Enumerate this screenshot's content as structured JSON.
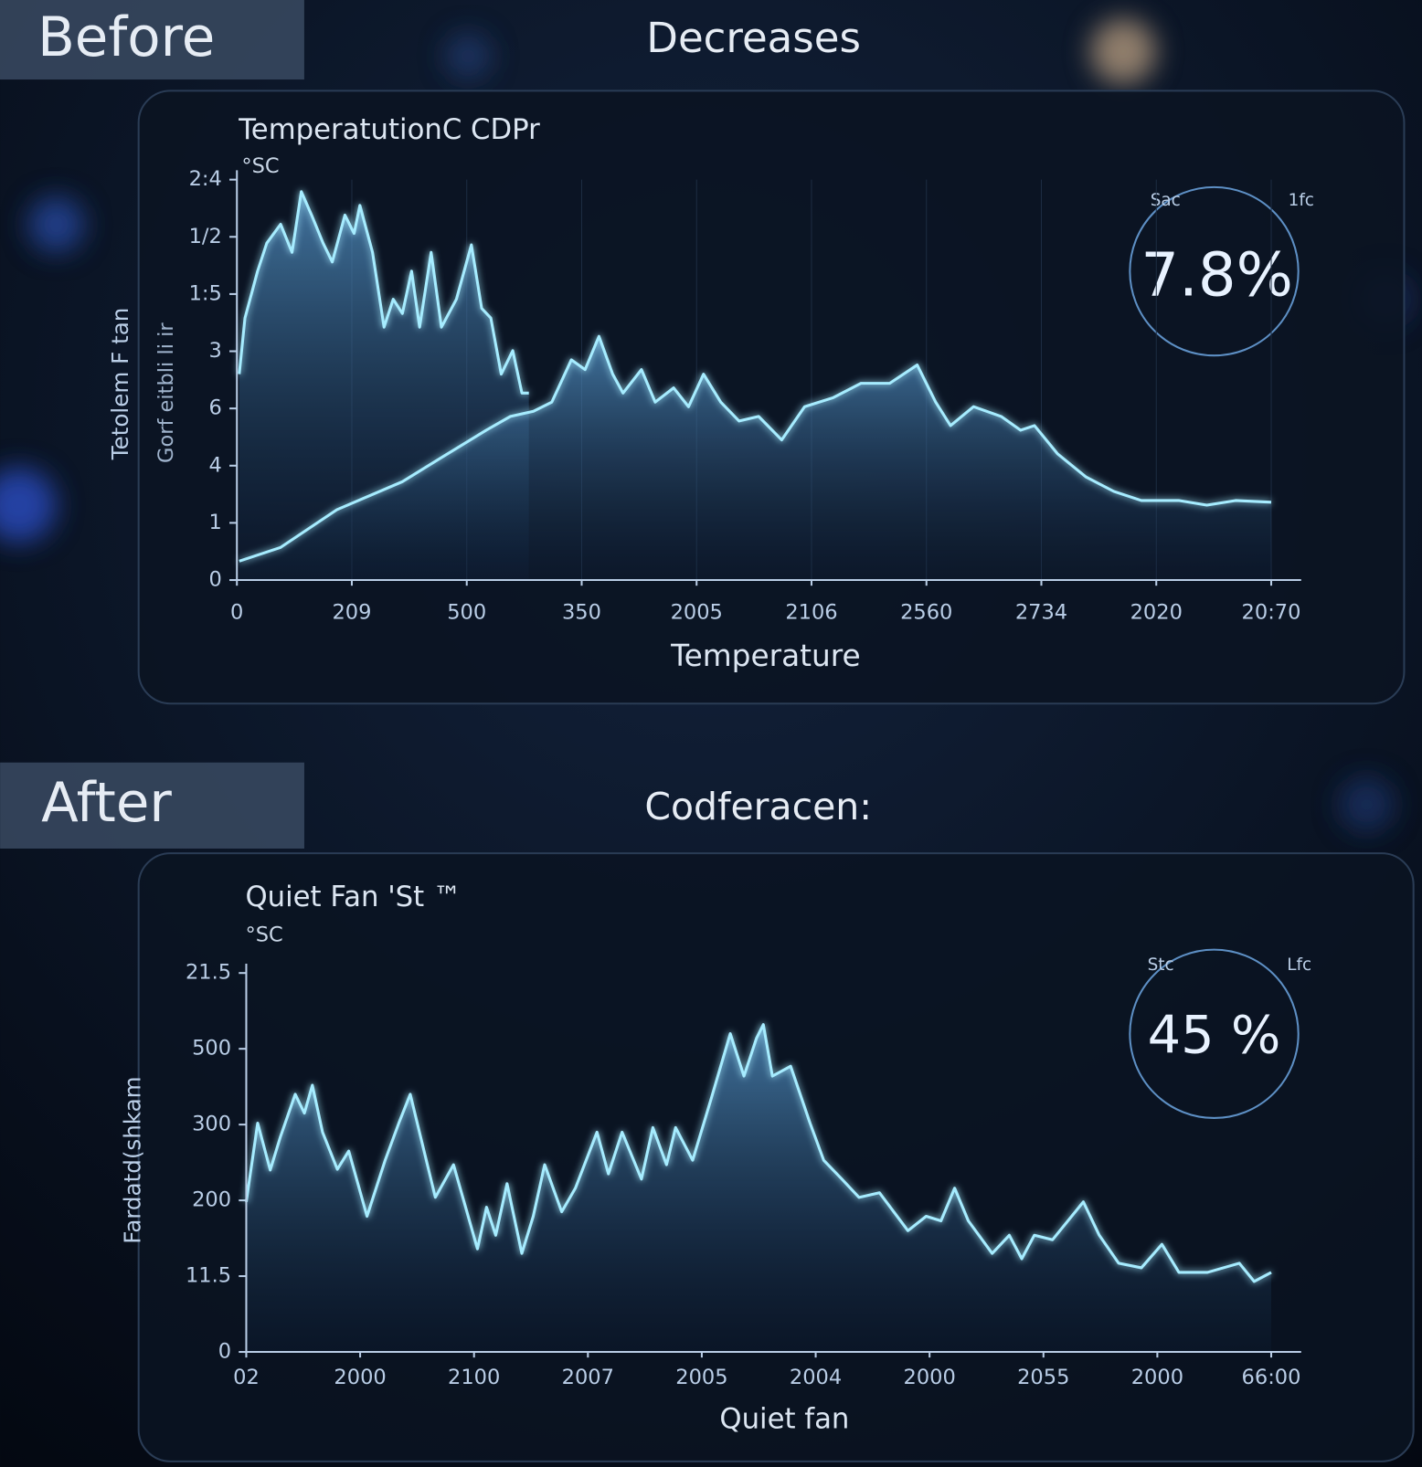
{
  "panels": [
    {
      "tag": "Before",
      "heading": "Decreases",
      "chart": {
        "type": "area",
        "title": "TemperatutionC CDPr",
        "unit": "°SC",
        "ylabel": "Tetolem F tan",
        "ylabel2": "Gorf eitbli li ir",
        "xlabel": "Temperature",
        "grid": true,
        "xlim": [
          0,
          9
        ],
        "ylim": [
          0,
          7
        ],
        "xticks": [
          0,
          {
            "value": 1,
            "label": "209"
          },
          {
            "value": 2,
            "label": "500"
          },
          {
            "value": 3,
            "label": "350"
          },
          {
            "value": 4,
            "label": "2005"
          },
          {
            "value": 5,
            "label": "2106"
          },
          {
            "value": 6,
            "label": "2560"
          },
          {
            "value": 7,
            "label": "2734"
          },
          {
            "value": 8,
            "label": "2020"
          },
          {
            "value": 9,
            "label": "20:70"
          }
        ],
        "yticks": [
          0,
          {
            "value": 1,
            "label": "1"
          },
          {
            "value": 2,
            "label": "4"
          },
          {
            "value": 3,
            "label": "6"
          },
          {
            "value": 4,
            "label": "3"
          },
          {
            "value": 5,
            "label": "1:5"
          },
          {
            "value": 6,
            "label": "1/2"
          },
          {
            "value": 7,
            "label": "2:4"
          }
        ],
        "series": [
          {
            "color": "#a6ecff",
            "x": [
              0.02,
              0.07,
              0.18,
              0.26,
              0.38,
              0.48,
              0.56,
              0.65,
              0.75,
              0.83,
              0.94,
              1.02,
              1.07,
              1.18,
              1.28,
              1.36,
              1.44,
              1.52,
              1.59,
              1.69,
              1.78,
              1.91,
              2.04,
              2.13,
              2.21,
              2.3,
              2.4,
              2.48,
              2.54
            ],
            "values": [
              3.6,
              4.58,
              5.4,
              5.89,
              6.22,
              5.73,
              6.79,
              6.38,
              5.89,
              5.56,
              6.38,
              6.06,
              6.55,
              5.73,
              4.42,
              4.91,
              4.66,
              5.4,
              4.42,
              5.73,
              4.42,
              4.91,
              5.86,
              4.75,
              4.58,
              3.6,
              4.01,
              3.27,
              3.27
            ]
          },
          {
            "color": "#a6ecff",
            "x": [
              0.02,
              0.38,
              0.87,
              1.44,
              1.77,
              2.17,
              2.38,
              2.58,
              2.74,
              2.91,
              3.03,
              3.15,
              3.27,
              3.36,
              3.52,
              3.64,
              3.8,
              3.93,
              4.06,
              4.21,
              4.37,
              4.54,
              4.74,
              4.94,
              5.19,
              5.43,
              5.68,
              5.92,
              6.08,
              6.21,
              6.41,
              6.65,
              6.82,
              6.94,
              7.14,
              7.39,
              7.63,
              7.87,
              8.2,
              8.44,
              8.69,
              9.0
            ],
            "values": [
              0.33,
              0.57,
              1.23,
              1.72,
              2.13,
              2.62,
              2.86,
              2.95,
              3.11,
              3.85,
              3.68,
              4.26,
              3.6,
              3.27,
              3.68,
              3.11,
              3.36,
              3.03,
              3.6,
              3.11,
              2.78,
              2.86,
              2.45,
              3.03,
              3.19,
              3.44,
              3.44,
              3.76,
              3.11,
              2.7,
              3.03,
              2.86,
              2.62,
              2.7,
              2.21,
              1.8,
              1.55,
              1.39,
              1.39,
              1.31,
              1.39,
              1.36
            ]
          }
        ],
        "gauge": {
          "value": "7.8%",
          "left": "Sac",
          "right": "1fc"
        }
      }
    },
    {
      "tag": "After",
      "heading": "Codferacen:",
      "chart": {
        "type": "area",
        "title": "Quiet Fan 'St ™",
        "unit": "°SC",
        "ylabel": "Fardatd(shkam",
        "xlabel": "Quiet fan",
        "grid": false,
        "xlim": [
          0,
          9
        ],
        "ylim": [
          0,
          5
        ],
        "xticks": [
          {
            "value": 0,
            "label": "02"
          },
          {
            "value": 1,
            "label": "2000"
          },
          {
            "value": 2,
            "label": "2100"
          },
          {
            "value": 3,
            "label": "2007"
          },
          {
            "value": 4,
            "label": "2005"
          },
          {
            "value": 5,
            "label": "2004"
          },
          {
            "value": 6,
            "label": "2000"
          },
          {
            "value": 7,
            "label": "2055"
          },
          {
            "value": 8,
            "label": "2000"
          },
          {
            "value": 9,
            "label": "66:00"
          }
        ],
        "yticks": [
          0,
          {
            "value": 1,
            "label": "11.5"
          },
          {
            "value": 2,
            "label": "200"
          },
          {
            "value": 3,
            "label": "300"
          },
          {
            "value": 4,
            "label": "500"
          },
          {
            "value": 5,
            "label": "21.5"
          }
        ],
        "series": [
          {
            "color": "#a6ecff",
            "x": [
              0,
              0.1,
              0.21,
              0.3,
              0.43,
              0.51,
              0.58,
              0.67,
              0.8,
              0.9,
              1.06,
              1.22,
              1.34,
              1.44,
              1.54,
              1.66,
              1.82,
              2.03,
              2.11,
              2.19,
              2.29,
              2.42,
              2.52,
              2.62,
              2.77,
              2.89,
              3.08,
              3.18,
              3.3,
              3.47,
              3.57,
              3.69,
              3.77,
              3.92,
              4.08,
              4.25,
              4.37,
              4.48,
              4.54,
              4.62,
              4.78,
              4.95,
              5.07,
              5.23,
              5.38,
              5.56,
              5.81,
              5.97,
              6.1,
              6.22,
              6.34,
              6.55,
              6.7,
              6.81,
              6.92,
              7.08,
              7.35,
              7.49,
              7.66,
              7.86,
              8.04,
              8.19,
              8.44,
              8.72,
              8.85,
              9.0
            ],
            "values": [
              1.98,
              3.02,
              2.4,
              2.84,
              3.4,
              3.15,
              3.52,
              2.9,
              2.41,
              2.65,
              1.79,
              2.53,
              3.02,
              3.4,
              2.78,
              2.04,
              2.47,
              1.36,
              1.91,
              1.54,
              2.22,
              1.3,
              1.79,
              2.47,
              1.85,
              2.16,
              2.9,
              2.35,
              2.9,
              2.28,
              2.96,
              2.47,
              2.96,
              2.53,
              3.33,
              4.2,
              3.64,
              4.14,
              4.32,
              3.64,
              3.77,
              3.02,
              2.53,
              2.28,
              2.04,
              2.1,
              1.6,
              1.79,
              1.73,
              2.16,
              1.73,
              1.3,
              1.54,
              1.23,
              1.54,
              1.48,
              1.98,
              1.54,
              1.17,
              1.11,
              1.42,
              1.05,
              1.05,
              1.17,
              0.93,
              1.05
            ]
          }
        ],
        "gauge": {
          "value": "45 %",
          "left": "Stc",
          "right": "Lfc"
        }
      }
    }
  ]
}
